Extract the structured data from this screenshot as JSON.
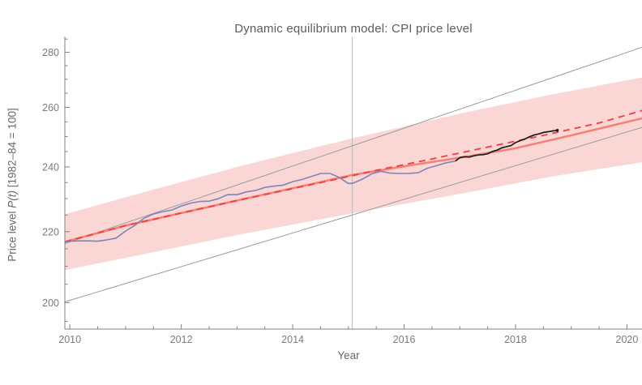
{
  "chart_data": {
    "type": "line",
    "title": "Dynamic equilibrium model: CPI price level",
    "xlabel": "Year",
    "ylabel": "Price level P(t) [1982–84 = 100]",
    "ylabel_parts": {
      "prefix": "Price level ",
      "math": "P(t)",
      "suffix": " [1982–84 = 100]"
    },
    "yscale": "log",
    "xlim": [
      2009.91,
      2020.27
    ],
    "ylim": [
      193,
      286
    ],
    "grid": false,
    "legend": "none",
    "axis_color": "#828282",
    "tick_label_color": "#7b7b7b",
    "xticks": {
      "major": [
        2010,
        2012,
        2014,
        2016,
        2018,
        2020
      ],
      "labels": [
        "2010",
        "2012",
        "2014",
        "2016",
        "2018",
        "2020"
      ],
      "minor": [
        2010.5,
        2011,
        2011.5,
        2012.5,
        2013,
        2013.5,
        2014.5,
        2015,
        2015.5,
        2016.5,
        2017,
        2017.5,
        2018.5,
        2019,
        2019.5
      ]
    },
    "yticks": {
      "major": [
        200,
        220,
        240,
        260,
        280
      ],
      "labels": [
        "200",
        "220",
        "240",
        "260",
        "280"
      ],
      "minor": [
        195,
        205,
        210,
        215,
        225,
        230,
        235,
        245,
        250,
        255,
        265,
        270,
        275,
        285
      ]
    },
    "vline": {
      "x": 2015.07,
      "color": "#b9b9b9",
      "width": 1
    },
    "band": {
      "name": "model-confidence-band",
      "color": "#fad7d4",
      "top": [
        [
          2009.91,
          225.2
        ],
        [
          2011.0,
          230.4
        ],
        [
          2013.0,
          240.0
        ],
        [
          2015.07,
          249.4
        ],
        [
          2017.04,
          258.0
        ],
        [
          2018.64,
          264.5
        ],
        [
          2020.27,
          270.7
        ]
      ],
      "bottom": [
        [
          2009.91,
          208.9
        ],
        [
          2011.0,
          212.4
        ],
        [
          2013.0,
          219.0
        ],
        [
          2015.07,
          225.5
        ],
        [
          2017.04,
          231.6
        ],
        [
          2018.64,
          236.9
        ],
        [
          2020.27,
          241.5
        ]
      ]
    },
    "series": [
      {
        "name": "equilibrium-asymptote-upper",
        "color": "#9b9b9b",
        "width": 1,
        "straight": true,
        "points": [
          [
            2009.91,
            216.5
          ],
          [
            2020.27,
            281.9
          ]
        ]
      },
      {
        "name": "equilibrium-asymptote-lower",
        "color": "#9b9b9b",
        "width": 1,
        "straight": true,
        "points": [
          [
            2009.91,
            200.2
          ],
          [
            2020.27,
            253.1
          ]
        ]
      },
      {
        "name": "model-fit-solid",
        "color": "#f4827a",
        "width": 2.6,
        "points": [
          [
            2009.91,
            217.0
          ],
          [
            2011,
            221.8
          ],
          [
            2013,
            229.4
          ],
          [
            2015.07,
            237.4
          ],
          [
            2016,
            240.2
          ],
          [
            2017,
            243.0
          ],
          [
            2018,
            246.1
          ],
          [
            2019,
            250.4
          ],
          [
            2020.27,
            256.2
          ]
        ]
      },
      {
        "name": "model-forecast-dashed",
        "color": "#ef4340",
        "width": 1.9,
        "dash": "8 6",
        "points": [
          [
            2009.91,
            217.0
          ],
          [
            2011,
            221.8
          ],
          [
            2013,
            229.4
          ],
          [
            2014.5,
            235.0
          ],
          [
            2015.5,
            238.9
          ],
          [
            2016.5,
            242.6
          ],
          [
            2017.5,
            246.5
          ],
          [
            2018.5,
            250.4
          ],
          [
            2019.5,
            254.6
          ],
          [
            2020.27,
            258.9
          ]
        ]
      },
      {
        "name": "cpi-data-pre-forecast",
        "color": "#7f84b8",
        "width": 1.6,
        "points": [
          [
            2009.92,
            217.0
          ],
          [
            2010.0,
            217.2
          ],
          [
            2010.17,
            217.3
          ],
          [
            2010.33,
            217.3
          ],
          [
            2010.5,
            217.2
          ],
          [
            2010.67,
            217.6
          ],
          [
            2010.83,
            218.1
          ],
          [
            2011.0,
            220.2
          ],
          [
            2011.17,
            221.9
          ],
          [
            2011.33,
            224.0
          ],
          [
            2011.5,
            225.3
          ],
          [
            2011.67,
            226.0
          ],
          [
            2011.83,
            226.5
          ],
          [
            2012.0,
            227.7
          ],
          [
            2012.17,
            228.6
          ],
          [
            2012.33,
            229.1
          ],
          [
            2012.5,
            229.2
          ],
          [
            2012.67,
            230.0
          ],
          [
            2012.83,
            231.2
          ],
          [
            2013.0,
            231.2
          ],
          [
            2013.17,
            232.1
          ],
          [
            2013.33,
            232.5
          ],
          [
            2013.5,
            233.5
          ],
          [
            2013.67,
            233.9
          ],
          [
            2013.83,
            234.2
          ],
          [
            2014.0,
            235.3
          ],
          [
            2014.17,
            236.0
          ],
          [
            2014.33,
            236.9
          ],
          [
            2014.5,
            237.9
          ],
          [
            2014.67,
            237.9
          ],
          [
            2014.83,
            236.7
          ],
          [
            2015.0,
            234.7
          ],
          [
            2015.08,
            234.8
          ],
          [
            2015.25,
            236.1
          ],
          [
            2015.42,
            237.8
          ],
          [
            2015.58,
            238.6
          ],
          [
            2015.75,
            238.0
          ],
          [
            2015.92,
            237.9
          ],
          [
            2016.08,
            237.9
          ],
          [
            2016.25,
            238.1
          ],
          [
            2016.42,
            239.6
          ],
          [
            2016.58,
            240.4
          ],
          [
            2016.75,
            241.3
          ],
          [
            2016.92,
            241.9
          ]
        ]
      },
      {
        "name": "cpi-data-post-forecast",
        "color": "#1b1b1b",
        "width": 1.7,
        "end_dot": true,
        "points": [
          [
            2016.92,
            241.9
          ],
          [
            2017.0,
            243.0
          ],
          [
            2017.08,
            243.3
          ],
          [
            2017.17,
            243.2
          ],
          [
            2017.25,
            243.6
          ],
          [
            2017.33,
            243.9
          ],
          [
            2017.42,
            244.0
          ],
          [
            2017.5,
            244.3
          ],
          [
            2017.58,
            245.0
          ],
          [
            2017.67,
            245.5
          ],
          [
            2017.75,
            246.2
          ],
          [
            2017.83,
            246.6
          ],
          [
            2017.92,
            247.0
          ],
          [
            2018.0,
            248.0
          ],
          [
            2018.08,
            248.6
          ],
          [
            2018.17,
            249.2
          ],
          [
            2018.25,
            249.9
          ],
          [
            2018.33,
            250.5
          ],
          [
            2018.42,
            250.9
          ],
          [
            2018.5,
            251.4
          ],
          [
            2018.58,
            251.6
          ],
          [
            2018.67,
            251.9
          ],
          [
            2018.75,
            252.1
          ]
        ]
      }
    ]
  }
}
